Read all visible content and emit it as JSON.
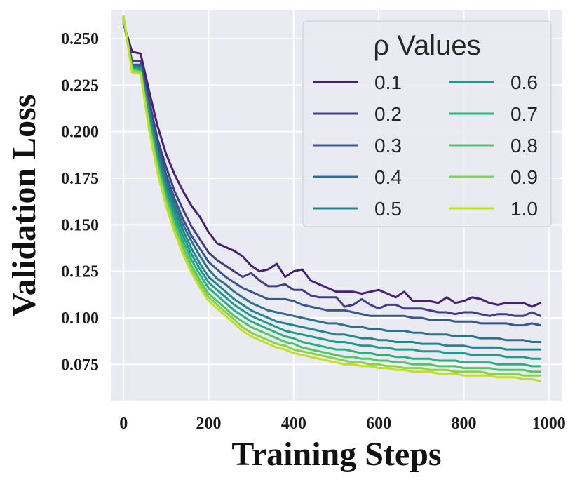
{
  "chart_data": {
    "type": "line",
    "title": "",
    "xlabel": "Training Steps",
    "ylabel": "Validation Loss",
    "xlim": [
      -30,
      1030
    ],
    "ylim": [
      0.0555,
      0.2655
    ],
    "x_ticks": [
      0,
      200,
      400,
      600,
      800,
      1000
    ],
    "x_tick_labels": [
      "0",
      "200",
      "400",
      "600",
      "800",
      "1000"
    ],
    "y_ticks": [
      0.075,
      0.1,
      0.125,
      0.15,
      0.175,
      0.2,
      0.225,
      0.25
    ],
    "y_tick_labels": [
      "0.075",
      "0.100",
      "0.125",
      "0.150",
      "0.175",
      "0.200",
      "0.225",
      "0.250"
    ],
    "grid": true,
    "legend": {
      "title": "ρ Values",
      "position": "top-right",
      "columns": 2
    },
    "x": [
      0,
      20,
      40,
      60,
      80,
      100,
      120,
      140,
      160,
      180,
      200,
      220,
      240,
      260,
      280,
      300,
      320,
      340,
      360,
      380,
      400,
      420,
      440,
      460,
      480,
      500,
      520,
      540,
      560,
      580,
      600,
      620,
      640,
      660,
      680,
      700,
      720,
      740,
      760,
      780,
      800,
      820,
      840,
      860,
      880,
      900,
      920,
      940,
      960,
      980
    ],
    "series": [
      {
        "name": "0.1",
        "color": "#482173",
        "values": [
          0.258,
          0.243,
          0.242,
          0.222,
          0.203,
          0.188,
          0.177,
          0.168,
          0.16,
          0.154,
          0.146,
          0.14,
          0.138,
          0.136,
          0.133,
          0.128,
          0.125,
          0.126,
          0.129,
          0.122,
          0.125,
          0.126,
          0.12,
          0.118,
          0.116,
          0.114,
          0.114,
          0.114,
          0.113,
          0.114,
          0.115,
          0.113,
          0.111,
          0.114,
          0.109,
          0.109,
          0.109,
          0.108,
          0.111,
          0.108,
          0.109,
          0.111,
          0.11,
          0.108,
          0.107,
          0.108,
          0.108,
          0.108,
          0.106,
          0.108
        ]
      },
      {
        "name": "0.2",
        "color": "#433e85",
        "values": [
          0.259,
          0.238,
          0.238,
          0.217,
          0.196,
          0.181,
          0.168,
          0.158,
          0.149,
          0.142,
          0.135,
          0.131,
          0.128,
          0.125,
          0.122,
          0.124,
          0.12,
          0.117,
          0.117,
          0.118,
          0.115,
          0.115,
          0.112,
          0.111,
          0.111,
          0.111,
          0.106,
          0.107,
          0.11,
          0.107,
          0.105,
          0.107,
          0.107,
          0.105,
          0.105,
          0.105,
          0.104,
          0.103,
          0.103,
          0.102,
          0.103,
          0.103,
          0.102,
          0.101,
          0.102,
          0.102,
          0.101,
          0.101,
          0.103,
          0.101
        ]
      },
      {
        "name": "0.3",
        "color": "#38588c",
        "values": [
          0.259,
          0.236,
          0.236,
          0.214,
          0.193,
          0.177,
          0.164,
          0.153,
          0.144,
          0.137,
          0.13,
          0.126,
          0.122,
          0.119,
          0.116,
          0.114,
          0.112,
          0.11,
          0.11,
          0.11,
          0.109,
          0.107,
          0.106,
          0.105,
          0.104,
          0.104,
          0.104,
          0.103,
          0.102,
          0.101,
          0.101,
          0.101,
          0.101,
          0.101,
          0.1,
          0.1,
          0.099,
          0.099,
          0.099,
          0.098,
          0.098,
          0.098,
          0.097,
          0.097,
          0.097,
          0.097,
          0.096,
          0.096,
          0.097,
          0.096
        ]
      },
      {
        "name": "0.4",
        "color": "#2d708e",
        "values": [
          0.26,
          0.235,
          0.235,
          0.212,
          0.19,
          0.174,
          0.161,
          0.15,
          0.141,
          0.133,
          0.126,
          0.121,
          0.118,
          0.114,
          0.111,
          0.108,
          0.106,
          0.104,
          0.103,
          0.102,
          0.101,
          0.1,
          0.099,
          0.098,
          0.097,
          0.097,
          0.096,
          0.095,
          0.095,
          0.094,
          0.094,
          0.093,
          0.093,
          0.093,
          0.092,
          0.092,
          0.091,
          0.091,
          0.091,
          0.09,
          0.09,
          0.09,
          0.089,
          0.089,
          0.089,
          0.088,
          0.088,
          0.088,
          0.087,
          0.087
        ]
      },
      {
        "name": "0.5",
        "color": "#25858e",
        "values": [
          0.261,
          0.235,
          0.234,
          0.21,
          0.188,
          0.171,
          0.158,
          0.147,
          0.137,
          0.129,
          0.122,
          0.118,
          0.114,
          0.11,
          0.107,
          0.104,
          0.102,
          0.1,
          0.098,
          0.097,
          0.096,
          0.095,
          0.094,
          0.093,
          0.092,
          0.091,
          0.091,
          0.09,
          0.089,
          0.089,
          0.088,
          0.088,
          0.087,
          0.087,
          0.087,
          0.086,
          0.086,
          0.086,
          0.085,
          0.085,
          0.085,
          0.084,
          0.084,
          0.084,
          0.084,
          0.083,
          0.083,
          0.083,
          0.083,
          0.083
        ]
      },
      {
        "name": "0.6",
        "color": "#1e9b8a",
        "values": [
          0.261,
          0.234,
          0.234,
          0.208,
          0.186,
          0.168,
          0.155,
          0.144,
          0.134,
          0.126,
          0.119,
          0.115,
          0.111,
          0.107,
          0.104,
          0.101,
          0.099,
          0.097,
          0.095,
          0.093,
          0.092,
          0.091,
          0.09,
          0.089,
          0.088,
          0.087,
          0.087,
          0.086,
          0.085,
          0.085,
          0.084,
          0.084,
          0.083,
          0.083,
          0.083,
          0.082,
          0.082,
          0.082,
          0.081,
          0.081,
          0.081,
          0.08,
          0.08,
          0.08,
          0.08,
          0.079,
          0.079,
          0.079,
          0.078,
          0.078
        ]
      },
      {
        "name": "0.7",
        "color": "#2ab07f",
        "values": [
          0.261,
          0.234,
          0.233,
          0.206,
          0.184,
          0.166,
          0.153,
          0.141,
          0.131,
          0.123,
          0.116,
          0.112,
          0.108,
          0.104,
          0.101,
          0.098,
          0.096,
          0.094,
          0.092,
          0.09,
          0.089,
          0.087,
          0.086,
          0.085,
          0.084,
          0.083,
          0.083,
          0.082,
          0.081,
          0.081,
          0.08,
          0.08,
          0.079,
          0.079,
          0.078,
          0.078,
          0.078,
          0.077,
          0.077,
          0.077,
          0.076,
          0.076,
          0.076,
          0.076,
          0.075,
          0.075,
          0.075,
          0.075,
          0.074,
          0.074
        ]
      },
      {
        "name": "0.8",
        "color": "#52c569",
        "values": [
          0.262,
          0.233,
          0.232,
          0.204,
          0.182,
          0.164,
          0.15,
          0.138,
          0.128,
          0.12,
          0.113,
          0.109,
          0.105,
          0.101,
          0.098,
          0.095,
          0.093,
          0.091,
          0.089,
          0.087,
          0.086,
          0.084,
          0.083,
          0.082,
          0.081,
          0.08,
          0.079,
          0.079,
          0.078,
          0.078,
          0.077,
          0.077,
          0.076,
          0.076,
          0.075,
          0.075,
          0.075,
          0.074,
          0.074,
          0.074,
          0.073,
          0.073,
          0.073,
          0.073,
          0.072,
          0.072,
          0.072,
          0.072,
          0.071,
          0.071
        ]
      },
      {
        "name": "0.9",
        "color": "#86d549",
        "values": [
          0.262,
          0.233,
          0.232,
          0.203,
          0.18,
          0.162,
          0.148,
          0.136,
          0.126,
          0.118,
          0.111,
          0.107,
          0.103,
          0.099,
          0.095,
          0.092,
          0.09,
          0.088,
          0.086,
          0.085,
          0.083,
          0.082,
          0.081,
          0.08,
          0.079,
          0.078,
          0.077,
          0.076,
          0.076,
          0.075,
          0.075,
          0.074,
          0.074,
          0.073,
          0.073,
          0.073,
          0.072,
          0.072,
          0.072,
          0.071,
          0.071,
          0.071,
          0.071,
          0.07,
          0.07,
          0.07,
          0.07,
          0.069,
          0.069,
          0.069
        ]
      },
      {
        "name": "1.0",
        "color": "#c2df23",
        "values": [
          0.262,
          0.232,
          0.231,
          0.201,
          0.178,
          0.16,
          0.146,
          0.134,
          0.124,
          0.116,
          0.109,
          0.105,
          0.101,
          0.097,
          0.093,
          0.09,
          0.088,
          0.086,
          0.084,
          0.083,
          0.081,
          0.08,
          0.079,
          0.078,
          0.077,
          0.076,
          0.075,
          0.075,
          0.074,
          0.074,
          0.073,
          0.073,
          0.072,
          0.072,
          0.071,
          0.071,
          0.071,
          0.07,
          0.07,
          0.07,
          0.069,
          0.069,
          0.069,
          0.069,
          0.068,
          0.068,
          0.068,
          0.067,
          0.067,
          0.066
        ]
      }
    ]
  }
}
